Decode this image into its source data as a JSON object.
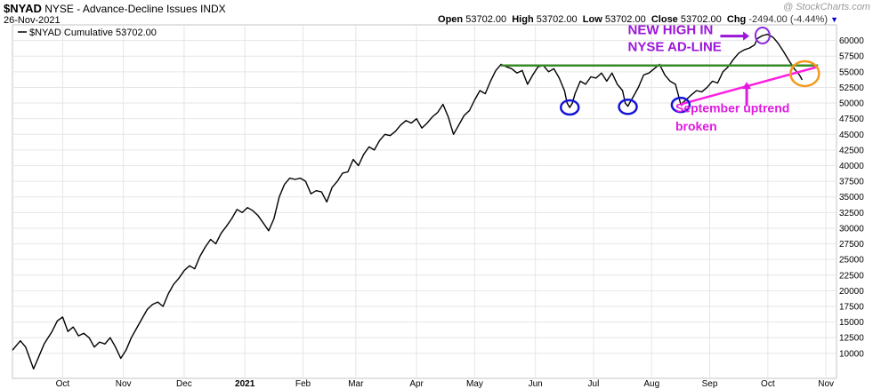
{
  "header": {
    "symbol": "$NYAD",
    "name": "NYSE - Advance-Decline Issues",
    "exchange": "INDX",
    "date": "26-Nov-2021",
    "open_label": "Open",
    "open": "53702.00",
    "high_label": "High",
    "high": "53702.00",
    "low_label": "Low",
    "low": "53702.00",
    "close_label": "Close",
    "close": "53702.00",
    "chg_label": "Chg",
    "chg": "-2494.00 (-4.44%)",
    "chg_arrow": "▼"
  },
  "watermark": "@ StockCharts.com",
  "legend": {
    "label": "$NYAD Cumulative 53702.00"
  },
  "colors": {
    "line": "#000000",
    "resistance": "#3a8a2a",
    "uptrend": "#ff1fe0",
    "circles": "#1515d8",
    "high_circle": "#8a2be2",
    "break_circle": "#f39a1e",
    "annotation_purple": "#9b16d8",
    "annotation_magenta": "#e01ae0",
    "grid": "#e6e6e6"
  },
  "annotations": {
    "new_high_line1": "NEW HIGH IN",
    "new_high_line2": "NYSE AD-LINE",
    "uptrend_line1": "September uptrend",
    "uptrend_line2": "broken"
  },
  "chart_data": {
    "type": "line",
    "title": "$NYAD Cumulative",
    "ylim": [
      6000,
      62500
    ],
    "y_ticks": [
      10000,
      12500,
      15000,
      17500,
      20000,
      22500,
      25000,
      27500,
      30000,
      32500,
      35000,
      37500,
      40000,
      42500,
      45000,
      47500,
      50000,
      52500,
      55000,
      57500,
      60000
    ],
    "x_labels": [
      "Oct",
      "Nov",
      "Dec",
      "2021",
      "Feb",
      "Mar",
      "Apr",
      "May",
      "Jun",
      "Jul",
      "Aug",
      "Sep",
      "Oct",
      "Nov"
    ],
    "x_label_bold": "2021",
    "x_domain": [
      0,
      312
    ],
    "x_label_positions": [
      19,
      42,
      65,
      88,
      110,
      130,
      153,
      175,
      198,
      220,
      242,
      264,
      286,
      308
    ],
    "series": [
      {
        "values": [
          [
            0,
            10500
          ],
          [
            3,
            12000
          ],
          [
            5,
            11000
          ],
          [
            8,
            7500
          ],
          [
            10,
            9500
          ],
          [
            12,
            11500
          ],
          [
            15,
            13500
          ],
          [
            17,
            15200
          ],
          [
            19,
            15800
          ],
          [
            21,
            13500
          ],
          [
            23,
            14200
          ],
          [
            25,
            12800
          ],
          [
            27,
            13200
          ],
          [
            29,
            12500
          ],
          [
            31,
            11000
          ],
          [
            33,
            11800
          ],
          [
            35,
            11500
          ],
          [
            37,
            12500
          ],
          [
            39,
            11000
          ],
          [
            41,
            9200
          ],
          [
            43,
            10500
          ],
          [
            45,
            12500
          ],
          [
            47,
            14000
          ],
          [
            49,
            15500
          ],
          [
            51,
            17000
          ],
          [
            53,
            17800
          ],
          [
            55,
            18200
          ],
          [
            57,
            17500
          ],
          [
            59,
            19500
          ],
          [
            61,
            21000
          ],
          [
            63,
            22000
          ],
          [
            65,
            23200
          ],
          [
            67,
            24000
          ],
          [
            69,
            23500
          ],
          [
            71,
            25500
          ],
          [
            73,
            27000
          ],
          [
            75,
            28200
          ],
          [
            77,
            27500
          ],
          [
            79,
            29200
          ],
          [
            81,
            30300
          ],
          [
            83,
            31500
          ],
          [
            85,
            33000
          ],
          [
            87,
            32500
          ],
          [
            89,
            33300
          ],
          [
            91,
            32800
          ],
          [
            93,
            32000
          ],
          [
            95,
            30800
          ],
          [
            97,
            29600
          ],
          [
            99,
            31500
          ],
          [
            101,
            35000
          ],
          [
            103,
            37000
          ],
          [
            105,
            38000
          ],
          [
            107,
            37800
          ],
          [
            109,
            38000
          ],
          [
            111,
            37500
          ],
          [
            113,
            35500
          ],
          [
            115,
            36000
          ],
          [
            117,
            35800
          ],
          [
            119,
            34200
          ],
          [
            121,
            36500
          ],
          [
            123,
            37500
          ],
          [
            125,
            38800
          ],
          [
            127,
            39000
          ],
          [
            129,
            41000
          ],
          [
            131,
            40000
          ],
          [
            133,
            41800
          ],
          [
            135,
            43000
          ],
          [
            137,
            42500
          ],
          [
            139,
            44000
          ],
          [
            141,
            45000
          ],
          [
            143,
            44800
          ],
          [
            145,
            45500
          ],
          [
            147,
            46500
          ],
          [
            149,
            47200
          ],
          [
            151,
            46800
          ],
          [
            153,
            47500
          ],
          [
            155,
            46000
          ],
          [
            157,
            46800
          ],
          [
            159,
            47800
          ],
          [
            161,
            48500
          ],
          [
            163,
            49800
          ],
          [
            165,
            47800
          ],
          [
            167,
            45000
          ],
          [
            169,
            46500
          ],
          [
            171,
            48000
          ],
          [
            173,
            48800
          ],
          [
            175,
            50500
          ],
          [
            177,
            52000
          ],
          [
            179,
            51500
          ],
          [
            181,
            53500
          ],
          [
            183,
            55200
          ],
          [
            185,
            56200
          ],
          [
            187,
            55800
          ],
          [
            189,
            55500
          ],
          [
            191,
            54800
          ],
          [
            193,
            55200
          ],
          [
            195,
            53000
          ],
          [
            197,
            54500
          ],
          [
            199,
            55800
          ],
          [
            201,
            56000
          ],
          [
            203,
            55000
          ],
          [
            205,
            55500
          ],
          [
            207,
            54000
          ],
          [
            209,
            52000
          ],
          [
            210,
            50000
          ],
          [
            211,
            49300
          ],
          [
            212,
            50000
          ],
          [
            213,
            51500
          ],
          [
            215,
            53500
          ],
          [
            217,
            53000
          ],
          [
            219,
            54200
          ],
          [
            221,
            54000
          ],
          [
            223,
            54800
          ],
          [
            225,
            53500
          ],
          [
            227,
            54800
          ],
          [
            229,
            53000
          ],
          [
            231,
            52000
          ],
          [
            232,
            50000
          ],
          [
            233,
            49500
          ],
          [
            235,
            51000
          ],
          [
            237,
            52500
          ],
          [
            239,
            54500
          ],
          [
            241,
            54800
          ],
          [
            243,
            55500
          ],
          [
            245,
            56200
          ],
          [
            247,
            54500
          ],
          [
            249,
            53500
          ],
          [
            251,
            53000
          ],
          [
            252,
            51500
          ],
          [
            253,
            49800
          ],
          [
            255,
            50500
          ],
          [
            257,
            51300
          ],
          [
            259,
            52000
          ],
          [
            261,
            51800
          ],
          [
            263,
            52500
          ],
          [
            265,
            53500
          ],
          [
            267,
            53200
          ],
          [
            269,
            55000
          ],
          [
            271,
            55800
          ],
          [
            273,
            57000
          ],
          [
            275,
            58000
          ],
          [
            277,
            58500
          ],
          [
            279,
            58800
          ],
          [
            281,
            59300
          ],
          [
            282,
            60300
          ],
          [
            284,
            60800
          ],
          [
            286,
            61000
          ],
          [
            288,
            60500
          ],
          [
            290,
            59500
          ],
          [
            292,
            58200
          ],
          [
            294,
            56800
          ],
          [
            296,
            55500
          ],
          [
            298,
            54500
          ],
          [
            299,
            53702
          ]
        ]
      }
    ]
  }
}
